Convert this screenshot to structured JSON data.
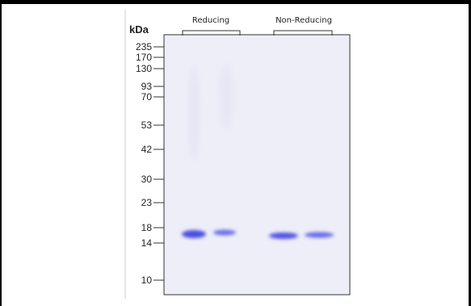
{
  "gel": {
    "unit_label": "kDa",
    "markers": [
      "235",
      "170",
      "130",
      "93",
      "70",
      "53",
      "42",
      "30",
      "23",
      "18",
      "14",
      "10"
    ],
    "groups": [
      "Reducing",
      "Non-Reducing"
    ]
  }
}
